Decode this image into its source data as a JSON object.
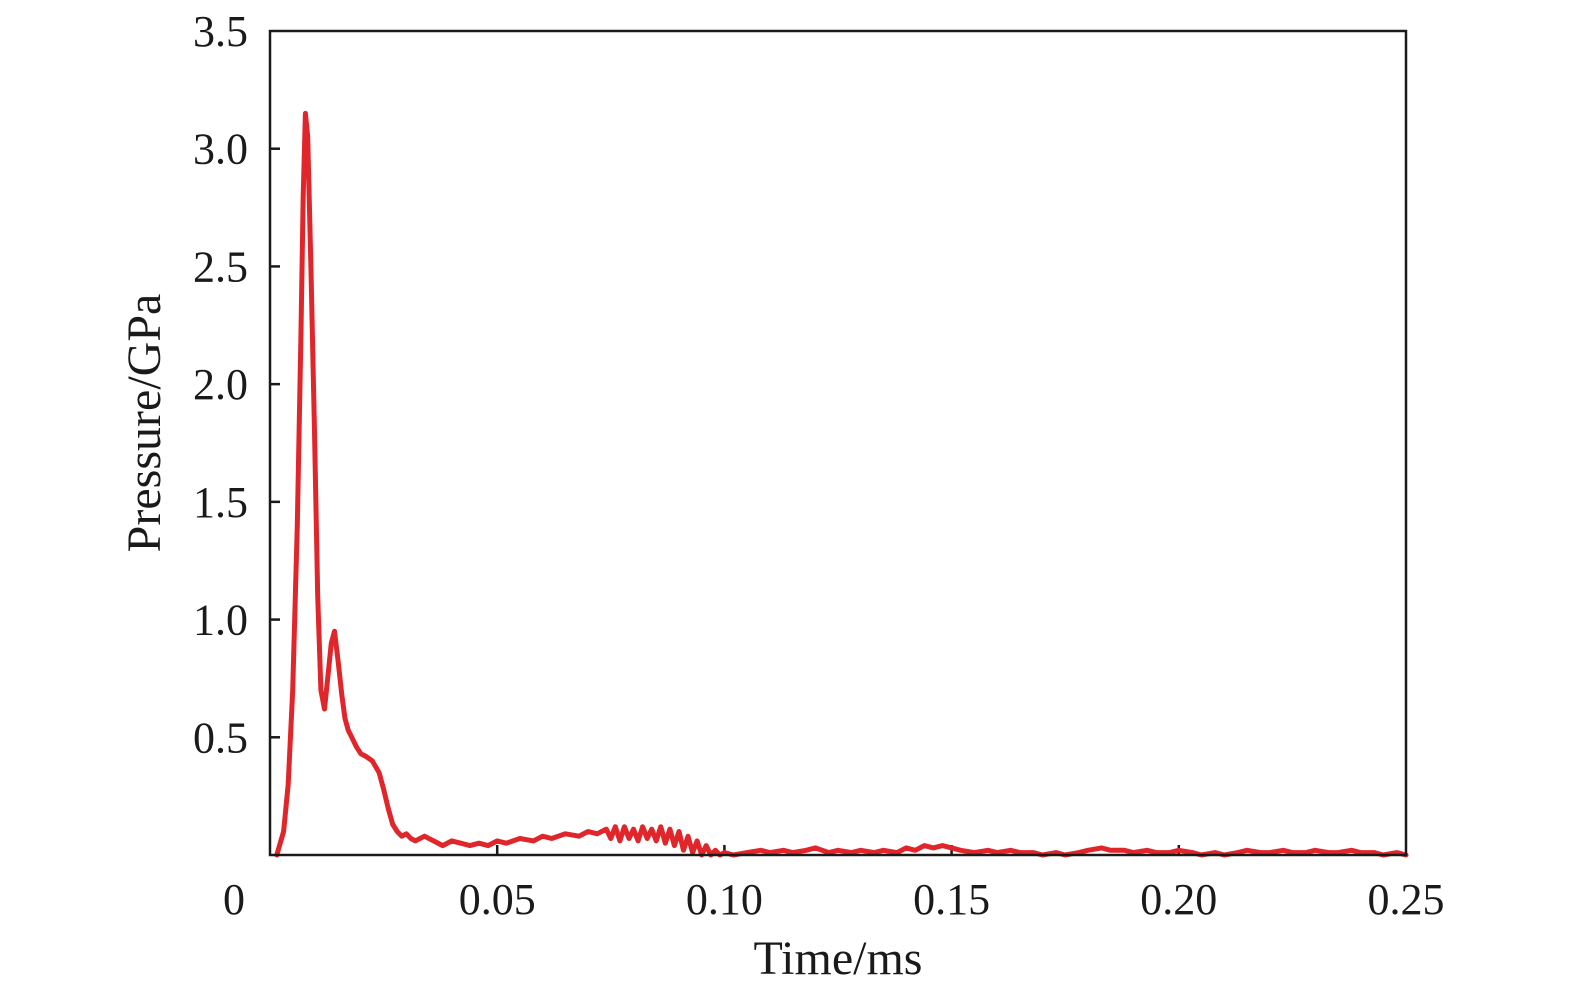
{
  "chart_data": {
    "type": "line",
    "xlabel": "Time/ms",
    "ylabel": "Pressure/GPa",
    "xlim": [
      0,
      0.25
    ],
    "ylim": [
      0,
      3.5
    ],
    "x_ticks": [
      "0",
      "0.05",
      "0.10",
      "0.15",
      "0.20",
      "0.25"
    ],
    "x_tick_values": [
      0,
      0.05,
      0.1,
      0.15,
      0.2,
      0.25
    ],
    "y_ticks": [
      "0.5",
      "1.0",
      "1.5",
      "2.0",
      "2.5",
      "3.0",
      "3.5"
    ],
    "y_tick_values": [
      0.5,
      1.0,
      1.5,
      2.0,
      2.5,
      3.0,
      3.5
    ],
    "grid": false,
    "colors": {
      "series": "#e0262b",
      "axis": "#1a1a1a"
    },
    "series": [
      {
        "x": [
          0.0015,
          0.003,
          0.004,
          0.005,
          0.006,
          0.0068,
          0.0073,
          0.0078,
          0.0083,
          0.009,
          0.0098,
          0.0105,
          0.0112,
          0.012,
          0.0127,
          0.0135,
          0.0142,
          0.015,
          0.0158,
          0.0165,
          0.0172,
          0.018,
          0.019,
          0.02,
          0.021,
          0.0225,
          0.024,
          0.025,
          0.026,
          0.027,
          0.028,
          0.029,
          0.03,
          0.031,
          0.032,
          0.034,
          0.036,
          0.038,
          0.04,
          0.042,
          0.044,
          0.046,
          0.048,
          0.05,
          0.052,
          0.055,
          0.058,
          0.06,
          0.062,
          0.065,
          0.068,
          0.07,
          0.072,
          0.074,
          0.075,
          0.076,
          0.077,
          0.078,
          0.079,
          0.08,
          0.081,
          0.082,
          0.083,
          0.084,
          0.085,
          0.086,
          0.087,
          0.088,
          0.089,
          0.09,
          0.091,
          0.092,
          0.093,
          0.094,
          0.095,
          0.096,
          0.097,
          0.098,
          0.099,
          0.1,
          0.102,
          0.105,
          0.108,
          0.11,
          0.113,
          0.115,
          0.118,
          0.12,
          0.123,
          0.125,
          0.128,
          0.13,
          0.133,
          0.135,
          0.138,
          0.14,
          0.142,
          0.144,
          0.146,
          0.148,
          0.15,
          0.152,
          0.155,
          0.158,
          0.16,
          0.163,
          0.165,
          0.168,
          0.17,
          0.173,
          0.175,
          0.178,
          0.18,
          0.183,
          0.185,
          0.188,
          0.19,
          0.193,
          0.195,
          0.198,
          0.2,
          0.203,
          0.205,
          0.208,
          0.21,
          0.213,
          0.215,
          0.218,
          0.22,
          0.223,
          0.225,
          0.228,
          0.23,
          0.233,
          0.235,
          0.238,
          0.24,
          0.243,
          0.245,
          0.248,
          0.25
        ],
        "y": [
          0.0,
          0.1,
          0.3,
          0.7,
          1.4,
          2.2,
          2.8,
          3.15,
          3.05,
          2.5,
          1.8,
          1.1,
          0.7,
          0.62,
          0.75,
          0.9,
          0.95,
          0.82,
          0.68,
          0.58,
          0.53,
          0.5,
          0.46,
          0.43,
          0.42,
          0.4,
          0.35,
          0.28,
          0.2,
          0.13,
          0.1,
          0.08,
          0.09,
          0.07,
          0.06,
          0.08,
          0.06,
          0.04,
          0.06,
          0.05,
          0.04,
          0.05,
          0.04,
          0.06,
          0.05,
          0.07,
          0.06,
          0.08,
          0.07,
          0.09,
          0.08,
          0.1,
          0.09,
          0.11,
          0.07,
          0.12,
          0.06,
          0.12,
          0.07,
          0.11,
          0.06,
          0.12,
          0.07,
          0.11,
          0.06,
          0.12,
          0.05,
          0.11,
          0.04,
          0.1,
          0.02,
          0.08,
          0.01,
          0.06,
          0.0,
          0.04,
          0.0,
          0.02,
          0.0,
          0.01,
          0.0,
          0.01,
          0.02,
          0.01,
          0.02,
          0.01,
          0.02,
          0.03,
          0.01,
          0.02,
          0.01,
          0.02,
          0.01,
          0.02,
          0.01,
          0.03,
          0.02,
          0.04,
          0.03,
          0.04,
          0.03,
          0.02,
          0.01,
          0.02,
          0.01,
          0.02,
          0.01,
          0.01,
          0.0,
          0.01,
          0.0,
          0.01,
          0.02,
          0.03,
          0.02,
          0.02,
          0.01,
          0.02,
          0.01,
          0.01,
          0.02,
          0.01,
          0.0,
          0.01,
          0.0,
          0.01,
          0.02,
          0.01,
          0.01,
          0.02,
          0.01,
          0.01,
          0.02,
          0.01,
          0.01,
          0.02,
          0.01,
          0.01,
          0.0,
          0.01,
          0.0
        ]
      }
    ]
  }
}
